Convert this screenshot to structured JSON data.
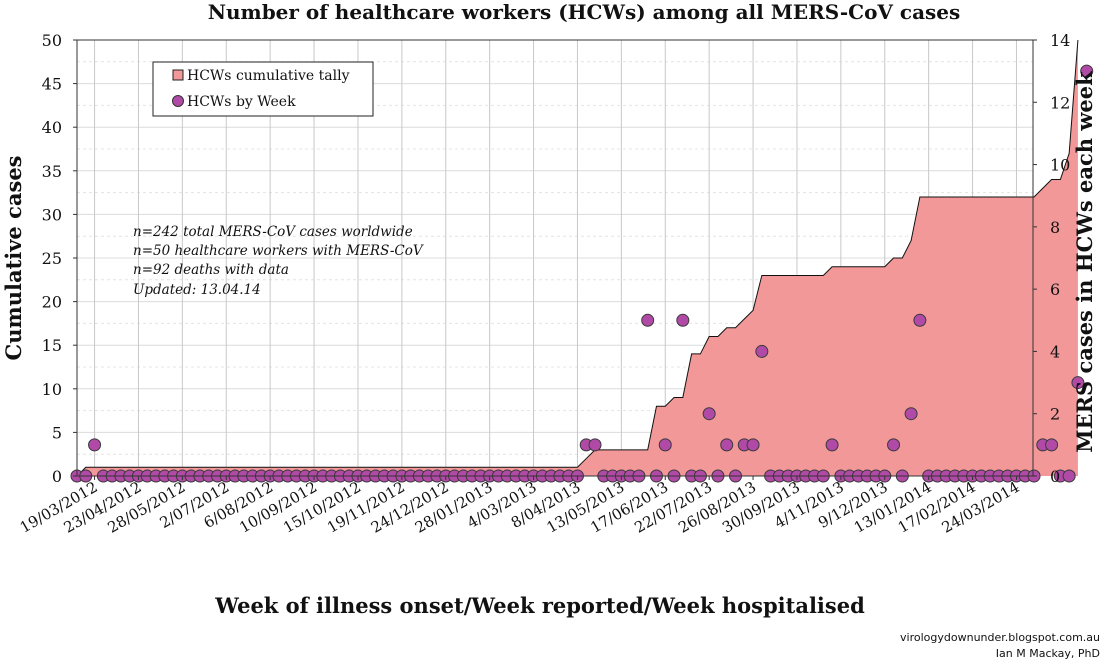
{
  "chart_data": {
    "type": "area",
    "title": "Number of healthcare workers (HCWs) among all MERS-CoV cases",
    "xlabel": "Week of illness onset/Week reported/Week hospitalised",
    "ylabel_left": "Cumulative cases",
    "ylabel_right": "MERS cases in HCWs each week",
    "ylim_left": [
      0,
      50
    ],
    "ylim_right": [
      0,
      14
    ],
    "yticks_left": [
      "0",
      "5",
      "10",
      "15",
      "20",
      "25",
      "30",
      "35",
      "40",
      "45",
      "50"
    ],
    "yticks_right": [
      "0",
      "2",
      "4",
      "6",
      "8",
      "10",
      "12",
      "14"
    ],
    "x_tick_labels": [
      "19/03/2012",
      "23/04/2012",
      "28/05/2012",
      "2/07/2012",
      "6/08/2012",
      "10/09/2012",
      "15/10/2012",
      "19/11/2012",
      "24/12/2012",
      "28/01/2013",
      "4/03/2013",
      "8/04/2013",
      "13/05/2013",
      "17/06/2013",
      "22/07/2013",
      "26/08/2013",
      "30/09/2013",
      "4/11/2013",
      "9/12/2013",
      "13/01/2014",
      "17/02/2014",
      "24/03/2014"
    ],
    "grid": true,
    "legend_position": "top-left",
    "series": [
      {
        "name": "HCWs cumulative tally",
        "type": "area",
        "axis": "left",
        "color": "#f29898",
        "values": [
          0,
          1,
          1,
          1,
          1,
          1,
          1,
          1,
          1,
          1,
          1,
          1,
          1,
          1,
          1,
          1,
          1,
          1,
          1,
          1,
          1,
          1,
          1,
          1,
          1,
          1,
          1,
          1,
          1,
          1,
          1,
          1,
          1,
          1,
          1,
          1,
          1,
          1,
          1,
          1,
          1,
          1,
          1,
          1,
          1,
          1,
          1,
          1,
          1,
          1,
          1,
          1,
          1,
          1,
          1,
          1,
          1,
          1,
          2,
          3,
          3,
          3,
          3,
          3,
          3,
          3,
          8,
          8,
          9,
          9,
          14,
          14,
          16,
          16,
          17,
          17,
          18,
          19,
          23,
          23,
          23,
          23,
          23,
          23,
          23,
          23,
          24,
          24,
          24,
          24,
          24,
          24,
          24,
          25,
          25,
          27,
          32,
          32,
          32,
          32,
          32,
          32,
          32,
          32,
          32,
          32,
          32,
          32,
          32,
          32,
          33,
          34,
          34,
          37,
          50
        ]
      },
      {
        "name": "HCWs by Week",
        "type": "scatter",
        "axis": "right",
        "color": "#b14aa6",
        "values": [
          0,
          0,
          1,
          0,
          0,
          0,
          0,
          0,
          0,
          0,
          0,
          0,
          0,
          0,
          0,
          0,
          0,
          0,
          0,
          0,
          0,
          0,
          0,
          0,
          0,
          0,
          0,
          0,
          0,
          0,
          0,
          0,
          0,
          0,
          0,
          0,
          0,
          0,
          0,
          0,
          0,
          0,
          0,
          0,
          0,
          0,
          0,
          0,
          0,
          0,
          0,
          0,
          0,
          0,
          0,
          0,
          0,
          0,
          1,
          1,
          0,
          0,
          0,
          0,
          0,
          5,
          0,
          1,
          0,
          5,
          0,
          0,
          2,
          0,
          1,
          0,
          1,
          1,
          4,
          0,
          0,
          0,
          0,
          0,
          0,
          0,
          1,
          0,
          0,
          0,
          0,
          0,
          0,
          1,
          0,
          2,
          5,
          0,
          0,
          0,
          0,
          0,
          0,
          0,
          0,
          0,
          0,
          0,
          0,
          0,
          1,
          1,
          0,
          0,
          3,
          13
        ]
      }
    ],
    "annotations": [
      "n=242 total MERS-CoV cases worldwide",
      "n=50 healthcare workers with MERS-CoV",
      "n=92 deaths with data",
      "Updated: 13.04.14"
    ],
    "credits": [
      "virologydownunder.blogspot.com.au",
      "Ian M Mackay, PhD"
    ],
    "colors": {
      "area": "#f29898",
      "marker": "#b14aa6",
      "grid": "#c8c8c8",
      "minor_grid": "#e4e4e4"
    }
  }
}
